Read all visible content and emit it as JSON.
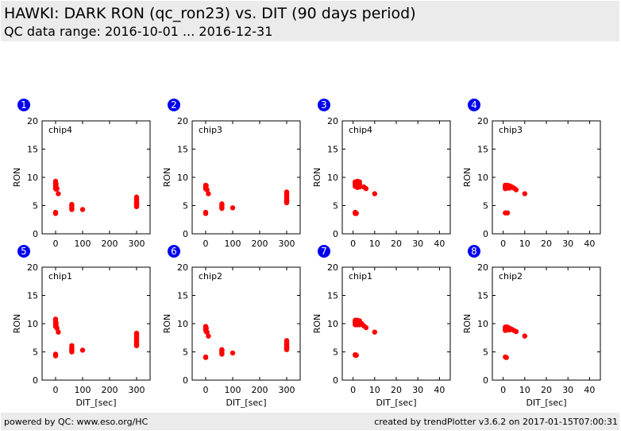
{
  "header": {
    "title": "HAWKI: DARK RON (qc_ron23) vs. DIT (90 days period)",
    "subtitle": "QC data range: 2016-10-01 ... 2016-12-31"
  },
  "footer": {
    "left": "powered by QC: www.eso.org/HC",
    "right": "created by trendPlotter v3.6.2 on 2017-01-15T07:00:31"
  },
  "colors": {
    "badge": "#0000ee",
    "points": "#ff0000",
    "header_bg": "#ebebeb"
  },
  "chart_data": [
    {
      "type": "scatter",
      "badge": "1",
      "label": "chip4",
      "xlabel": "",
      "ylabel": "RON",
      "xlim": [
        -50,
        350
      ],
      "ylim": [
        0,
        20
      ],
      "xticks": [
        0,
        100,
        200,
        300
      ],
      "yticks": [
        0,
        5,
        10,
        15,
        20
      ],
      "series": [
        {
          "x": [
            0,
            0,
            0,
            0,
            0,
            0,
            0,
            0,
            0,
            2,
            2,
            2,
            5,
            10,
            60,
            60,
            60,
            60,
            60,
            60,
            100,
            300,
            300,
            300,
            300,
            300,
            300,
            300,
            300,
            300,
            300,
            300,
            300,
            300
          ],
          "y": [
            9.3,
            9.0,
            8.8,
            8.5,
            8.2,
            8.0,
            3.8,
            3.7,
            3.6,
            8.8,
            8.3,
            7.9,
            8.0,
            7.1,
            5.2,
            5.0,
            4.8,
            4.6,
            4.4,
            4.3,
            4.3,
            6.5,
            6.3,
            6.1,
            6.0,
            5.8,
            5.6,
            5.5,
            5.4,
            5.2,
            5.1,
            5.0,
            4.9,
            4.8
          ]
        }
      ]
    },
    {
      "type": "scatter",
      "badge": "2",
      "label": "chip3",
      "xlabel": "",
      "ylabel": "RON",
      "xlim": [
        -50,
        350
      ],
      "ylim": [
        0,
        20
      ],
      "xticks": [
        0,
        100,
        200,
        300
      ],
      "yticks": [
        0,
        5,
        10,
        15,
        20
      ],
      "series": [
        {
          "x": [
            0,
            0,
            0,
            0,
            0,
            0,
            2,
            2,
            5,
            10,
            60,
            60,
            60,
            60,
            60,
            60,
            100,
            300,
            300,
            300,
            300,
            300,
            300,
            300,
            300,
            300,
            300,
            300,
            300,
            300
          ],
          "y": [
            8.6,
            8.4,
            8.2,
            8.0,
            3.8,
            3.6,
            8.5,
            7.9,
            7.8,
            7.1,
            5.3,
            5.1,
            4.9,
            4.7,
            4.6,
            4.5,
            4.6,
            7.4,
            7.2,
            7.0,
            6.8,
            6.6,
            6.4,
            6.2,
            6.0,
            5.9,
            5.8,
            5.7,
            5.6,
            5.5
          ]
        }
      ]
    },
    {
      "type": "scatter",
      "badge": "3",
      "label": "chip4",
      "xlabel": "",
      "ylabel": "RON",
      "xlim": [
        -5,
        45
      ],
      "ylim": [
        0,
        20
      ],
      "xticks": [
        0,
        10,
        20,
        30,
        40
      ],
      "yticks": [
        0,
        5,
        10,
        15,
        20
      ],
      "series": [
        {
          "x": [
            1,
            1,
            1,
            1,
            1,
            1,
            1,
            1.3,
            1.5,
            2,
            2,
            2,
            2,
            2,
            2,
            3,
            3,
            3,
            3,
            5,
            6,
            10
          ],
          "y": [
            9.2,
            9.0,
            8.8,
            8.6,
            8.4,
            3.8,
            3.6,
            3.7,
            3.6,
            9.3,
            9.0,
            8.8,
            8.6,
            8.4,
            8.2,
            9.2,
            8.8,
            8.5,
            8.3,
            8.3,
            8.0,
            7.1
          ]
        }
      ]
    },
    {
      "type": "scatter",
      "badge": "4",
      "label": "chip3",
      "xlabel": "",
      "ylabel": "RON",
      "xlim": [
        -5,
        45
      ],
      "ylim": [
        0,
        20
      ],
      "xticks": [
        0,
        10,
        20,
        30,
        40
      ],
      "yticks": [
        0,
        5,
        10,
        15,
        20
      ],
      "series": [
        {
          "x": [
            1,
            1,
            1,
            1,
            1,
            2,
            2,
            2,
            2,
            3,
            3,
            3,
            4,
            5,
            6,
            10
          ],
          "y": [
            8.6,
            8.4,
            8.2,
            8.0,
            3.7,
            8.6,
            8.4,
            8.1,
            3.7,
            8.5,
            8.3,
            8.1,
            8.3,
            8.1,
            7.8,
            7.1
          ]
        }
      ]
    },
    {
      "type": "scatter",
      "badge": "5",
      "label": "chip1",
      "xlabel": "DIT_[sec]",
      "ylabel": "RON",
      "xlim": [
        -50,
        350
      ],
      "ylim": [
        0,
        20
      ],
      "xticks": [
        0,
        100,
        200,
        300
      ],
      "yticks": [
        0,
        5,
        10,
        15,
        20
      ],
      "series": [
        {
          "x": [
            0,
            0,
            0,
            0,
            0,
            0,
            0,
            0,
            0,
            2,
            2,
            5,
            10,
            60,
            60,
            60,
            60,
            60,
            60,
            100,
            300,
            300,
            300,
            300,
            300,
            300,
            300,
            300,
            300,
            300,
            300,
            300,
            300,
            300
          ],
          "y": [
            10.8,
            10.5,
            10.2,
            10.0,
            9.8,
            9.5,
            4.6,
            4.4,
            4.3,
            10.1,
            9.6,
            9.2,
            8.5,
            6.1,
            5.8,
            5.6,
            5.4,
            5.2,
            5.0,
            5.3,
            8.3,
            8.1,
            7.9,
            7.7,
            7.5,
            7.3,
            7.1,
            6.9,
            6.7,
            6.6,
            6.5,
            6.3,
            6.2,
            6.1
          ]
        }
      ]
    },
    {
      "type": "scatter",
      "badge": "6",
      "label": "chip2",
      "xlabel": "DIT_[sec]",
      "ylabel": "RON",
      "xlim": [
        -50,
        350
      ],
      "ylim": [
        0,
        20
      ],
      "xticks": [
        0,
        100,
        200,
        300
      ],
      "yticks": [
        0,
        5,
        10,
        15,
        20
      ],
      "series": [
        {
          "x": [
            0,
            0,
            0,
            0,
            0,
            0,
            2,
            2,
            5,
            10,
            60,
            60,
            60,
            60,
            60,
            100,
            300,
            300,
            300,
            300,
            300,
            300,
            300,
            300,
            300,
            300,
            300,
            300,
            300
          ],
          "y": [
            9.5,
            9.3,
            9.1,
            8.9,
            4.1,
            4.0,
            9.2,
            8.6,
            8.5,
            7.8,
            5.4,
            5.2,
            5.0,
            4.8,
            4.6,
            4.8,
            7.0,
            6.8,
            6.6,
            6.4,
            6.3,
            6.2,
            6.0,
            5.9,
            5.8,
            5.7,
            5.6,
            5.5,
            5.4
          ]
        }
      ]
    },
    {
      "type": "scatter",
      "badge": "7",
      "label": "chip1",
      "xlabel": "DIT_[sec]",
      "ylabel": "RON",
      "xlim": [
        -5,
        45
      ],
      "ylim": [
        0,
        20
      ],
      "xticks": [
        0,
        10,
        20,
        30,
        40
      ],
      "yticks": [
        0,
        5,
        10,
        15,
        20
      ],
      "series": [
        {
          "x": [
            1,
            1,
            1,
            1,
            1,
            1,
            1,
            1.5,
            2,
            2,
            2,
            2,
            2,
            2,
            3,
            3,
            3,
            3,
            4,
            5,
            6,
            10
          ],
          "y": [
            10.6,
            10.4,
            10.2,
            10.0,
            9.8,
            4.5,
            4.4,
            4.4,
            10.6,
            10.4,
            10.2,
            10.0,
            9.9,
            9.8,
            10.5,
            10.2,
            10.0,
            9.8,
            10.0,
            9.6,
            9.3,
            8.5
          ]
        }
      ]
    },
    {
      "type": "scatter",
      "badge": "8",
      "label": "chip2",
      "xlabel": "DIT_[sec]",
      "ylabel": "RON",
      "xlim": [
        -5,
        45
      ],
      "ylim": [
        0,
        20
      ],
      "xticks": [
        0,
        10,
        20,
        30,
        40
      ],
      "yticks": [
        0,
        5,
        10,
        15,
        20
      ],
      "series": [
        {
          "x": [
            1,
            1,
            1,
            1,
            1,
            1.5,
            2,
            2,
            2,
            3,
            3,
            4,
            5,
            6,
            10
          ],
          "y": [
            9.4,
            9.2,
            9.0,
            8.8,
            4.1,
            4.0,
            9.4,
            9.1,
            8.9,
            9.2,
            8.9,
            9.0,
            8.8,
            8.6,
            7.8
          ]
        }
      ]
    }
  ]
}
